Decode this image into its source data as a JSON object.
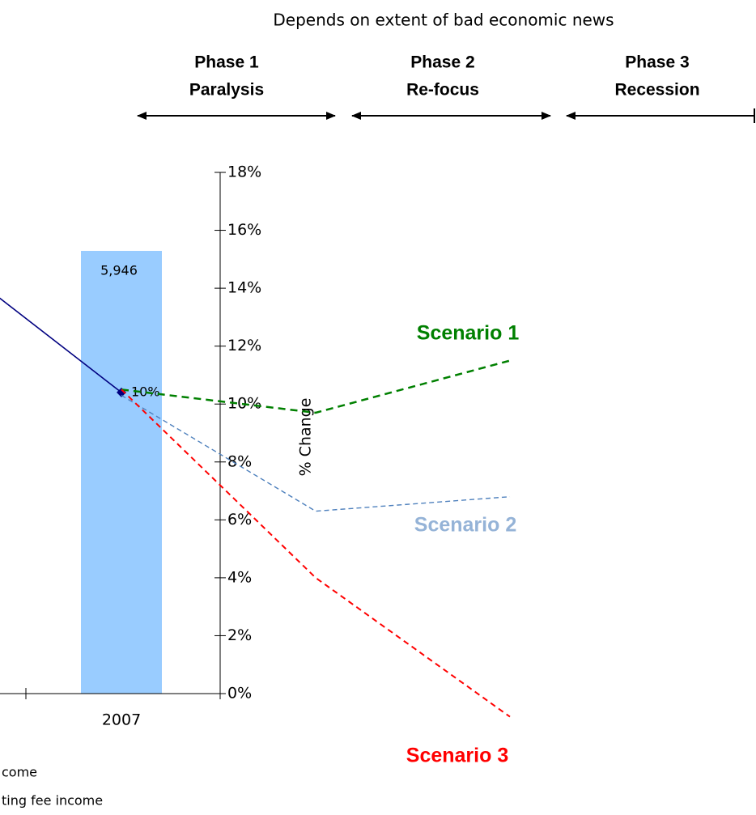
{
  "chart_data": {
    "type": "combo",
    "subtitle": "Depends on extent of bad economic news",
    "phases": [
      {
        "name": "Phase 1",
        "label": "Paralysis"
      },
      {
        "name": "Phase 2",
        "label": "Re-focus"
      },
      {
        "name": "Phase 3",
        "label": "Recession"
      }
    ],
    "y_label": "% Change",
    "categories": [
      null,
      "2007",
      null,
      null
    ],
    "ylim": [
      0,
      18
    ],
    "yticks": [
      {
        "value": 0,
        "label": "0%"
      },
      {
        "value": 2,
        "label": "2%"
      },
      {
        "value": 4,
        "label": "4%"
      },
      {
        "value": 6,
        "label": "6%"
      },
      {
        "value": 8,
        "label": "8%"
      },
      {
        "value": 10,
        "label": "10%"
      },
      {
        "value": 12,
        "label": "12%"
      },
      {
        "value": 14,
        "label": "14%"
      },
      {
        "value": 16,
        "label": "16%"
      },
      {
        "value": 18,
        "label": "18%"
      }
    ],
    "y2lim": [
      0,
      7000
    ],
    "series": [
      {
        "kind": "bar",
        "axis": "y2",
        "color": "#99ccff",
        "values": [
          null,
          5946,
          null,
          null
        ],
        "value_labels": [
          null,
          "5,946",
          null,
          null
        ]
      },
      {
        "kind": "line",
        "color": "#000080",
        "values": [
          15.6,
          10.4,
          null,
          null
        ],
        "value_labels": [
          null,
          "10%",
          null,
          null
        ],
        "marker": true
      },
      {
        "kind": "line",
        "name": "Scenario 1",
        "color": "#008000",
        "dash": true,
        "values": [
          null,
          10.5,
          9.7,
          11.5
        ]
      },
      {
        "kind": "line",
        "name": "Scenario 2",
        "color": "#4f81bd",
        "label_color": "#95b3d7",
        "dash": true,
        "values": [
          null,
          10.3,
          6.3,
          6.8
        ]
      },
      {
        "kind": "line",
        "name": "Scenario 3",
        "color": "#ff0000",
        "dash": true,
        "values": [
          null,
          10.5,
          4.0,
          -0.8
        ]
      }
    ],
    "legend_fragments": [
      "come",
      "ting fee income"
    ]
  }
}
